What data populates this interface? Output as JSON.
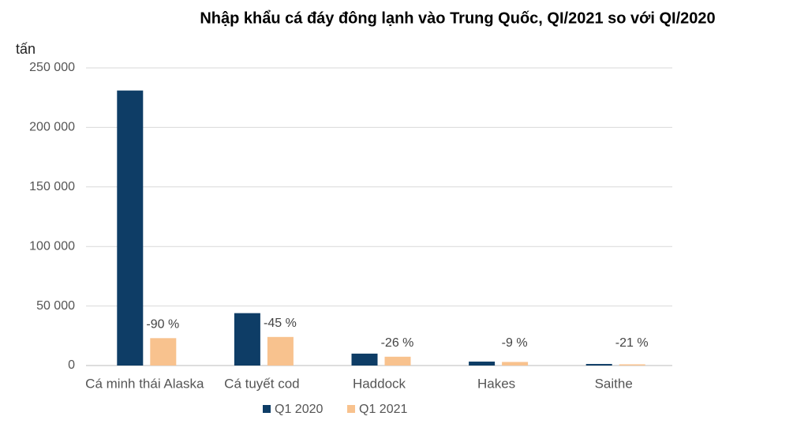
{
  "chart_data": {
    "type": "bar",
    "title": "Nhập khẩu cá đáy đông lạnh vào Trung Quốc, QI/2021 so với QI/2020",
    "y_label": "tấn",
    "categories": [
      "Cá minh thái Alaska",
      "Cá tuyết cod",
      "Haddock",
      "Hakes",
      "Saithe"
    ],
    "series": [
      {
        "name": "Q1 2020",
        "color": "#0e3d66",
        "values": [
          231000,
          44000,
          10000,
          3300,
          1300
        ]
      },
      {
        "name": "Q1 2021",
        "color": "#f8c28e",
        "values": [
          23000,
          24000,
          7400,
          3000,
          1000
        ]
      }
    ],
    "annotations": [
      "-90 %",
      "-45 %",
      "-26 %",
      "-9 %",
      "-21 %"
    ],
    "ylim": [
      0,
      250000
    ],
    "yticks": [
      0,
      {
        "value": 50000,
        "label": "50 000"
      },
      {
        "value": 100000,
        "label": "100 000"
      },
      {
        "value": 150000,
        "label": "150 000"
      },
      {
        "value": 200000,
        "label": "200 000"
      },
      {
        "value": 250000,
        "label": "250 000"
      }
    ],
    "grid": true,
    "legend": "bottom"
  }
}
